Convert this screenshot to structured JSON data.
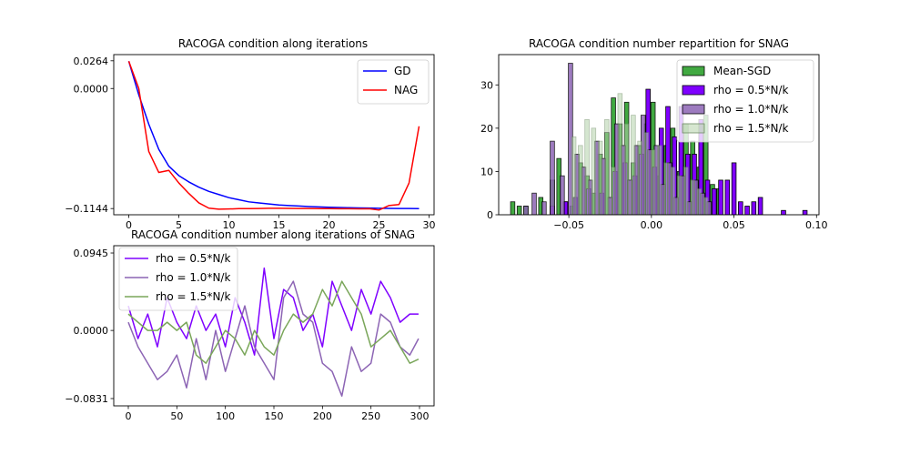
{
  "figure": {
    "background": "#ffffff"
  },
  "chart_data": [
    {
      "type": "line",
      "title": "RACOGA condition along iterations",
      "xlabel": "",
      "ylabel": "",
      "xlim": [
        -1.5,
        30.5
      ],
      "ylim": [
        -0.1203,
        0.0323
      ],
      "xticks": [
        0,
        5,
        10,
        15,
        20,
        25,
        30
      ],
      "yticks": [
        {
          "value": 0.0264,
          "label": "0.0264"
        },
        {
          "value": 0.0,
          "label": "0.0000"
        },
        {
          "value": -0.1144,
          "label": "−0.1144"
        }
      ],
      "grid": false,
      "legend_position": "top-right",
      "series": [
        {
          "name": "GD",
          "color": "#0000ff",
          "x": [
            0,
            1,
            2,
            3,
            4,
            5,
            6,
            7,
            8,
            9,
            10,
            11,
            12,
            13,
            14,
            15,
            16,
            17,
            18,
            19,
            20,
            21,
            22,
            23,
            24,
            25,
            26,
            27,
            28,
            29
          ],
          "y": [
            0.026,
            -0.006,
            -0.034,
            -0.058,
            -0.074,
            -0.083,
            -0.089,
            -0.094,
            -0.098,
            -0.101,
            -0.104,
            -0.106,
            -0.108,
            -0.109,
            -0.11,
            -0.111,
            -0.1115,
            -0.112,
            -0.1125,
            -0.1128,
            -0.1131,
            -0.1134,
            -0.1136,
            -0.1138,
            -0.1139,
            -0.1141,
            -0.1142,
            -0.1143,
            -0.1143,
            -0.1144
          ]
        },
        {
          "name": "NAG",
          "color": "#ff0000",
          "x": [
            0,
            1,
            2,
            3,
            4,
            5,
            6,
            7,
            8,
            9,
            10,
            11,
            12,
            13,
            14,
            15,
            16,
            17,
            18,
            19,
            20,
            21,
            22,
            23,
            24,
            25,
            26,
            27,
            28,
            29
          ],
          "y": [
            0.026,
            0.0,
            -0.06,
            -0.08,
            -0.078,
            -0.09,
            -0.1,
            -0.109,
            -0.114,
            -0.115,
            -0.1148,
            -0.1145,
            -0.1144,
            -0.1143,
            -0.1141,
            -0.1141,
            -0.1142,
            -0.1143,
            -0.1143,
            -0.1144,
            -0.1145,
            -0.1146,
            -0.1146,
            -0.1147,
            -0.1146,
            -0.1158,
            -0.1115,
            -0.1105,
            -0.09,
            -0.036
          ]
        }
      ]
    },
    {
      "type": "histogram",
      "title": "RACOGA condition number repartition for SNAG",
      "xlabel": "",
      "ylabel": "",
      "xlim": [
        -0.0925,
        0.1015
      ],
      "ylim": [
        0,
        37
      ],
      "xticks": [
        {
          "value": -0.05,
          "label": "−0.05"
        },
        {
          "value": 0.0,
          "label": "0.00"
        },
        {
          "value": 0.05,
          "label": "0.05"
        },
        {
          "value": 0.1,
          "label": "0.10"
        }
      ],
      "yticks": [
        0,
        10,
        20,
        30
      ],
      "grid": false,
      "legend_position": "top-right",
      "series": [
        {
          "name": "Mean-SGD",
          "color": "#2ca02c",
          "edgecolor": "#000000",
          "alpha": 0.9,
          "bin_width": 0.0026,
          "bins": [
            [
              -0.084,
              3
            ],
            [
              -0.08,
              2
            ],
            [
              -0.076,
              2
            ],
            [
              -0.067,
              4
            ],
            [
              -0.06,
              8
            ],
            [
              -0.056,
              13
            ],
            [
              -0.052,
              3
            ],
            [
              -0.048,
              2
            ],
            [
              -0.043,
              12
            ],
            [
              -0.039,
              9
            ],
            [
              -0.035,
              5
            ],
            [
              -0.031,
              14
            ],
            [
              -0.027,
              19
            ],
            [
              -0.023,
              27
            ],
            [
              -0.019,
              21
            ],
            [
              -0.015,
              26
            ],
            [
              -0.011,
              12
            ],
            [
              -0.007,
              16
            ],
            [
              -0.003,
              21
            ],
            [
              0.001,
              26
            ],
            [
              0.005,
              9
            ],
            [
              0.009,
              16
            ],
            [
              0.013,
              20
            ],
            [
              0.017,
              10
            ],
            [
              0.021,
              21
            ],
            [
              0.025,
              17
            ],
            [
              0.029,
              11
            ],
            [
              0.033,
              23
            ],
            [
              0.037,
              7
            ],
            [
              0.041,
              6
            ]
          ]
        },
        {
          "name": "rho = 0.5*N/k",
          "color": "#7f00ff",
          "edgecolor": "#000000",
          "alpha": 1.0,
          "bin_width": 0.0026,
          "bins": [
            [
              -0.06,
              2
            ],
            [
              -0.052,
              3
            ],
            [
              -0.046,
              4
            ],
            [
              -0.038,
              6
            ],
            [
              -0.03,
              5
            ],
            [
              -0.022,
              10
            ],
            [
              -0.016,
              12
            ],
            [
              -0.01,
              9
            ],
            [
              -0.006,
              14
            ],
            [
              -0.002,
              29
            ],
            [
              0.002,
              11
            ],
            [
              0.006,
              20
            ],
            [
              0.01,
              25
            ],
            [
              0.014,
              18
            ],
            [
              0.018,
              25
            ],
            [
              0.022,
              14
            ],
            [
              0.026,
              14
            ],
            [
              0.03,
              22
            ],
            [
              0.034,
              8
            ],
            [
              0.038,
              6
            ],
            [
              0.042,
              8
            ],
            [
              0.046,
              8
            ],
            [
              0.05,
              12
            ],
            [
              0.054,
              3
            ],
            [
              0.058,
              2
            ],
            [
              0.062,
              3
            ],
            [
              0.066,
              4
            ],
            [
              0.08,
              1
            ],
            [
              0.093,
              1
            ]
          ]
        },
        {
          "name": "rho = 1.0*N/k",
          "color": "#8c64b4",
          "edgecolor": "#000000",
          "alpha": 0.85,
          "bin_width": 0.0026,
          "bins": [
            [
              -0.076,
              2
            ],
            [
              -0.071,
              5
            ],
            [
              -0.065,
              3
            ],
            [
              -0.06,
              17
            ],
            [
              -0.054,
              9
            ],
            [
              -0.049,
              35
            ],
            [
              -0.045,
              14
            ],
            [
              -0.041,
              11
            ],
            [
              -0.037,
              8
            ],
            [
              -0.033,
              17
            ],
            [
              -0.029,
              13
            ],
            [
              -0.025,
              4
            ],
            [
              -0.021,
              21
            ],
            [
              -0.017,
              16
            ],
            [
              -0.013,
              8
            ],
            [
              -0.009,
              16
            ],
            [
              -0.005,
              23
            ],
            [
              -0.001,
              15
            ],
            [
              0.003,
              16
            ],
            [
              0.007,
              7
            ],
            [
              0.011,
              12
            ],
            [
              0.015,
              4
            ],
            [
              0.019,
              9
            ],
            [
              0.023,
              3
            ],
            [
              0.027,
              8
            ],
            [
              0.031,
              5
            ],
            [
              0.035,
              3
            ]
          ]
        },
        {
          "name": "rho = 1.5*N/k",
          "color": "#b4d2aa",
          "edgecolor": "#6e8c64",
          "alpha": 0.55,
          "bin_width": 0.0026,
          "bins": [
            [
              -0.047,
              18
            ],
            [
              -0.043,
              16
            ],
            [
              -0.039,
              22
            ],
            [
              -0.035,
              20
            ],
            [
              -0.031,
              17
            ],
            [
              -0.027,
              22
            ],
            [
              -0.023,
              11
            ],
            [
              -0.019,
              28
            ],
            [
              -0.015,
              21
            ],
            [
              -0.011,
              23
            ],
            [
              -0.007,
              17
            ],
            [
              -0.003,
              19
            ],
            [
              0.001,
              15
            ],
            [
              0.005,
              16
            ],
            [
              0.009,
              12
            ],
            [
              0.013,
              11
            ],
            [
              0.017,
              9
            ],
            [
              0.021,
              11
            ],
            [
              0.025,
              8
            ],
            [
              0.029,
              6
            ],
            [
              0.033,
              4
            ]
          ]
        }
      ]
    },
    {
      "type": "line",
      "title": "RACOGA condition number along iterations of SNAG",
      "xlabel": "",
      "ylabel": "",
      "xlim": [
        -15,
        315
      ],
      "ylim": [
        -0.092,
        0.1034
      ],
      "xticks": [
        0,
        50,
        100,
        150,
        200,
        250,
        300
      ],
      "yticks": [
        {
          "value": 0.0945,
          "label": "0.0945"
        },
        {
          "value": 0.0,
          "label": "0.0000"
        },
        {
          "value": -0.0831,
          "label": "−0.0831"
        }
      ],
      "grid": false,
      "legend_position": "top-left",
      "series": [
        {
          "name": "rho = 0.5*N/k",
          "color": "#7f00ff",
          "x": [
            0,
            10,
            20,
            30,
            40,
            50,
            60,
            70,
            80,
            90,
            100,
            110,
            120,
            130,
            140,
            150,
            160,
            170,
            180,
            190,
            200,
            210,
            220,
            230,
            240,
            250,
            260,
            270,
            280,
            290,
            299
          ],
          "y": [
            0.03,
            -0.01,
            0.02,
            -0.02,
            0.04,
            0.01,
            -0.01,
            0.03,
            0.0,
            0.02,
            -0.02,
            0.04,
            0.01,
            -0.03,
            0.076,
            -0.01,
            0.05,
            0.04,
            0.0,
            0.02,
            -0.02,
            0.06,
            0.03,
            0.0,
            0.05,
            0.02,
            0.06,
            0.04,
            0.01,
            0.02,
            0.02
          ]
        },
        {
          "name": "rho = 1.0*N/k",
          "color": "#8c64b4",
          "x": [
            0,
            10,
            20,
            30,
            40,
            50,
            60,
            70,
            80,
            90,
            100,
            110,
            120,
            130,
            140,
            150,
            160,
            170,
            180,
            190,
            200,
            210,
            220,
            230,
            240,
            250,
            260,
            270,
            280,
            290,
            299
          ],
          "y": [
            0.01,
            -0.02,
            -0.04,
            -0.06,
            -0.05,
            -0.03,
            -0.07,
            -0.01,
            -0.06,
            0.0,
            -0.05,
            -0.01,
            0.03,
            -0.02,
            -0.04,
            -0.06,
            0.04,
            0.06,
            0.02,
            0.01,
            -0.04,
            -0.05,
            -0.08,
            -0.02,
            -0.05,
            -0.04,
            0.02,
            0.01,
            -0.02,
            -0.03,
            -0.01
          ]
        },
        {
          "name": "rho = 1.5*N/k",
          "color": "#7aa65a",
          "x": [
            0,
            10,
            20,
            30,
            40,
            50,
            60,
            70,
            80,
            90,
            100,
            110,
            120,
            130,
            140,
            150,
            160,
            170,
            180,
            190,
            200,
            210,
            220,
            230,
            240,
            250,
            260,
            270,
            280,
            290,
            299
          ],
          "y": [
            0.02,
            0.01,
            0.0,
            0.0,
            0.01,
            0.0,
            0.01,
            -0.03,
            -0.04,
            -0.02,
            0.0,
            -0.01,
            -0.03,
            0.0,
            -0.02,
            -0.03,
            0.0,
            0.02,
            0.01,
            0.02,
            0.05,
            0.03,
            0.06,
            0.04,
            0.02,
            -0.02,
            -0.01,
            0.0,
            -0.02,
            -0.04,
            -0.035
          ]
        }
      ]
    }
  ]
}
